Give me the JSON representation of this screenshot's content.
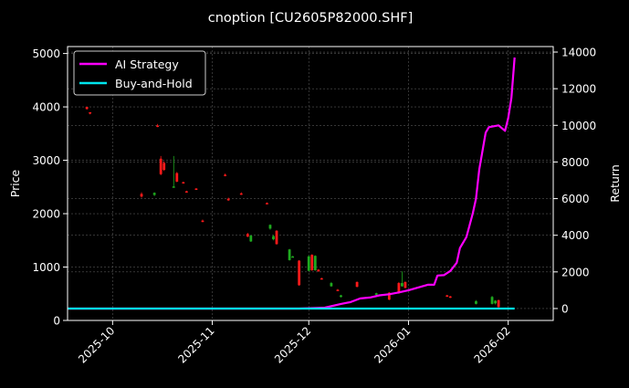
{
  "chart_data": {
    "type": "line",
    "title": "cnoption [CU2605P82000.SHF]",
    "xlabel": "",
    "ylabel_left": "Price",
    "ylabel_right": "Return",
    "background": "#000000",
    "grid": true,
    "legend_position": "upper left",
    "legend": [
      {
        "label": "AI Strategy",
        "color": "#ff00ff"
      },
      {
        "label": "Buy-and-Hold",
        "color": "#00e5ee"
      }
    ],
    "x_ticks": [
      "2025-10",
      "2025-11",
      "2025-12",
      "2026-01",
      "2026-02"
    ],
    "y_left_ticks": [
      0,
      1000,
      2000,
      3000,
      4000,
      5000
    ],
    "y_left_range": [
      0,
      5130
    ],
    "y_right_ticks": [
      0,
      2000,
      4000,
      6000,
      8000,
      10000,
      12000,
      14000
    ],
    "y_right_range": [
      -650,
      14300
    ],
    "x_range": [
      "2025-09-17",
      "2026-02-15"
    ],
    "candlesticks": [
      {
        "date": "2025-09-23",
        "open": 4000,
        "high": 4000,
        "low": 3950,
        "close": 3960,
        "color": "red"
      },
      {
        "date": "2025-09-24",
        "open": 3900,
        "high": 3900,
        "low": 3860,
        "close": 3880,
        "color": "red"
      },
      {
        "date": "2025-10-10",
        "open": 2370,
        "high": 2400,
        "low": 2300,
        "close": 2320,
        "color": "red"
      },
      {
        "date": "2025-10-14",
        "open": 2350,
        "high": 2400,
        "low": 2330,
        "close": 2390,
        "color": "green"
      },
      {
        "date": "2025-10-15",
        "open": 3650,
        "high": 3680,
        "low": 3620,
        "close": 3640,
        "color": "red"
      },
      {
        "date": "2025-10-16",
        "open": 3030,
        "high": 3080,
        "low": 2720,
        "close": 2740,
        "color": "red"
      },
      {
        "date": "2025-10-17",
        "open": 2950,
        "high": 2980,
        "low": 2800,
        "close": 2820,
        "color": "red"
      },
      {
        "date": "2025-10-20",
        "open": 2500,
        "high": 3080,
        "low": 2500,
        "close": 2510,
        "color": "green"
      },
      {
        "date": "2025-10-21",
        "open": 2760,
        "high": 2780,
        "low": 2590,
        "close": 2600,
        "color": "red"
      },
      {
        "date": "2025-10-23",
        "open": 2590,
        "high": 2600,
        "low": 2570,
        "close": 2580,
        "color": "red"
      },
      {
        "date": "2025-10-24",
        "open": 2420,
        "high": 2430,
        "low": 2400,
        "close": 2410,
        "color": "red"
      },
      {
        "date": "2025-10-27",
        "open": 2470,
        "high": 2480,
        "low": 2450,
        "close": 2460,
        "color": "red"
      },
      {
        "date": "2025-10-29",
        "open": 1870,
        "high": 1890,
        "low": 1840,
        "close": 1850,
        "color": "red"
      },
      {
        "date": "2025-11-05",
        "open": 2730,
        "high": 2750,
        "low": 2700,
        "close": 2720,
        "color": "red"
      },
      {
        "date": "2025-11-06",
        "open": 2280,
        "high": 2300,
        "low": 2240,
        "close": 2250,
        "color": "red"
      },
      {
        "date": "2025-11-10",
        "open": 2380,
        "high": 2400,
        "low": 2350,
        "close": 2360,
        "color": "red"
      },
      {
        "date": "2025-11-12",
        "open": 1620,
        "high": 1640,
        "low": 1560,
        "close": 1570,
        "color": "red"
      },
      {
        "date": "2025-11-13",
        "open": 1480,
        "high": 1600,
        "low": 1470,
        "close": 1590,
        "color": "green"
      },
      {
        "date": "2025-11-18",
        "open": 2200,
        "high": 2210,
        "low": 2180,
        "close": 2190,
        "color": "red"
      },
      {
        "date": "2025-11-19",
        "open": 1720,
        "high": 1800,
        "low": 1700,
        "close": 1790,
        "color": "green"
      },
      {
        "date": "2025-11-20",
        "open": 1520,
        "high": 1600,
        "low": 1500,
        "close": 1580,
        "color": "green"
      },
      {
        "date": "2025-11-21",
        "open": 1680,
        "high": 1690,
        "low": 1420,
        "close": 1430,
        "color": "red"
      },
      {
        "date": "2025-11-25",
        "open": 1130,
        "high": 1340,
        "low": 1120,
        "close": 1330,
        "color": "green"
      },
      {
        "date": "2025-11-26",
        "open": 1200,
        "high": 1210,
        "low": 1190,
        "close": 1200,
        "color": "green"
      },
      {
        "date": "2025-11-28",
        "open": 1120,
        "high": 1130,
        "low": 650,
        "close": 660,
        "color": "red"
      },
      {
        "date": "2025-12-01",
        "open": 930,
        "high": 1220,
        "low": 920,
        "close": 1200,
        "color": "green"
      },
      {
        "date": "2025-12-02",
        "open": 1230,
        "high": 1240,
        "low": 930,
        "close": 940,
        "color": "red"
      },
      {
        "date": "2025-12-03",
        "open": 940,
        "high": 1220,
        "low": 930,
        "close": 1210,
        "color": "green"
      },
      {
        "date": "2025-12-04",
        "open": 950,
        "high": 960,
        "low": 910,
        "close": 920,
        "color": "red"
      },
      {
        "date": "2025-12-05",
        "open": 790,
        "high": 800,
        "low": 780,
        "close": 790,
        "color": "red"
      },
      {
        "date": "2025-12-08",
        "open": 640,
        "high": 720,
        "low": 630,
        "close": 700,
        "color": "green"
      },
      {
        "date": "2025-12-10",
        "open": 570,
        "high": 590,
        "low": 560,
        "close": 575,
        "color": "red"
      },
      {
        "date": "2025-12-11",
        "open": 440,
        "high": 480,
        "low": 430,
        "close": 470,
        "color": "green"
      },
      {
        "date": "2025-12-16",
        "open": 720,
        "high": 730,
        "low": 620,
        "close": 630,
        "color": "red"
      },
      {
        "date": "2025-12-22",
        "open": 480,
        "high": 520,
        "low": 470,
        "close": 510,
        "color": "green"
      },
      {
        "date": "2025-12-26",
        "open": 520,
        "high": 530,
        "low": 380,
        "close": 390,
        "color": "red"
      },
      {
        "date": "2025-12-29",
        "open": 700,
        "high": 720,
        "low": 500,
        "close": 510,
        "color": "red"
      },
      {
        "date": "2025-12-30",
        "open": 640,
        "high": 920,
        "low": 630,
        "close": 700,
        "color": "green"
      },
      {
        "date": "2025-12-31",
        "open": 720,
        "high": 730,
        "low": 600,
        "close": 610,
        "color": "red"
      },
      {
        "date": "2026-01-13",
        "open": 470,
        "high": 480,
        "low": 440,
        "close": 450,
        "color": "red"
      },
      {
        "date": "2026-01-14",
        "open": 450,
        "high": 460,
        "low": 420,
        "close": 430,
        "color": "red"
      },
      {
        "date": "2026-01-22",
        "open": 310,
        "high": 380,
        "low": 300,
        "close": 360,
        "color": "green"
      },
      {
        "date": "2026-01-27",
        "open": 310,
        "high": 460,
        "low": 300,
        "close": 440,
        "color": "green"
      },
      {
        "date": "2026-01-28",
        "open": 320,
        "high": 380,
        "low": 300,
        "close": 370,
        "color": "green"
      },
      {
        "date": "2026-01-29",
        "open": 380,
        "high": 390,
        "low": 240,
        "close": 250,
        "color": "red"
      }
    ],
    "series": [
      {
        "name": "AI Strategy",
        "axis": "right",
        "color": "#ff00ff",
        "points": [
          [
            "2025-09-17",
            0
          ],
          [
            "2025-11-28",
            0
          ],
          [
            "2025-12-06",
            50
          ],
          [
            "2025-12-11",
            250
          ],
          [
            "2025-12-14",
            350
          ],
          [
            "2025-12-17",
            550
          ],
          [
            "2025-12-20",
            600
          ],
          [
            "2025-12-23",
            720
          ],
          [
            "2025-12-26",
            780
          ],
          [
            "2025-12-29",
            880
          ],
          [
            "2026-01-01",
            1000
          ],
          [
            "2026-01-04",
            1150
          ],
          [
            "2026-01-07",
            1300
          ],
          [
            "2026-01-09",
            1300
          ],
          [
            "2026-01-10",
            1800
          ],
          [
            "2026-01-12",
            1820
          ],
          [
            "2026-01-14",
            2050
          ],
          [
            "2026-01-16",
            2500
          ],
          [
            "2026-01-17",
            3300
          ],
          [
            "2026-01-19",
            3900
          ],
          [
            "2026-01-21",
            5200
          ],
          [
            "2026-01-22",
            6000
          ],
          [
            "2026-01-23",
            7600
          ],
          [
            "2026-01-25",
            9600
          ],
          [
            "2026-01-26",
            9900
          ],
          [
            "2026-01-29",
            10000
          ],
          [
            "2026-01-31",
            9700
          ],
          [
            "2026-02-01",
            10400
          ],
          [
            "2026-02-02",
            11500
          ],
          [
            "2026-02-03",
            13700
          ]
        ]
      },
      {
        "name": "Buy-and-Hold",
        "axis": "right",
        "color": "#00e5ee",
        "points": [
          [
            "2025-09-17",
            0
          ],
          [
            "2026-02-03",
            0
          ]
        ]
      }
    ]
  }
}
